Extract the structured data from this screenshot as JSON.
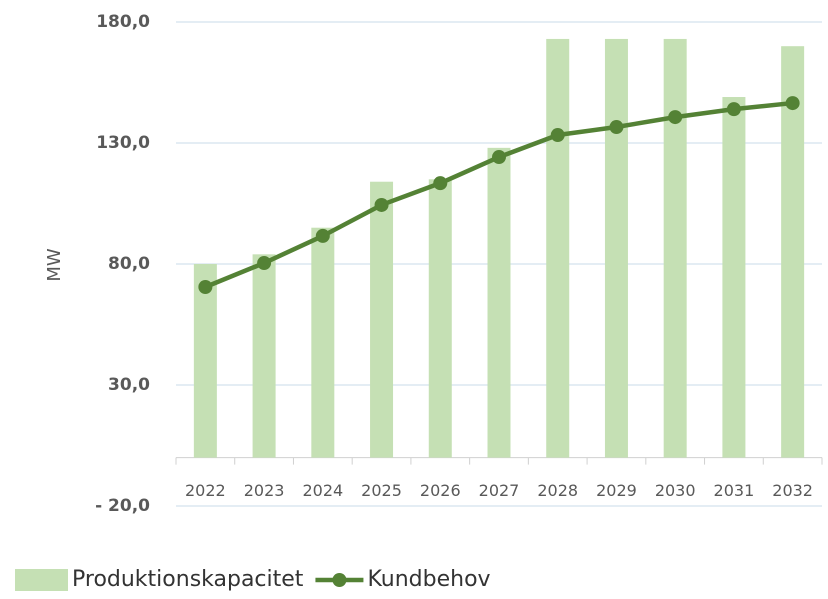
{
  "chart_data": {
    "type": "bar",
    "y_label": "MW",
    "categories": [
      "2022",
      "2023",
      "2024",
      "2025",
      "2026",
      "2027",
      "2028",
      "2029",
      "2030",
      "2031",
      "2032"
    ],
    "series": [
      {
        "name": "Produktionskapacitet",
        "type": "bar",
        "color": "#c5e0b4",
        "values": [
          80,
          84,
          95,
          114,
          115,
          128,
          173,
          173,
          173,
          149,
          170
        ]
      },
      {
        "name": "Kundbehov",
        "type": "line",
        "color": "#548235",
        "values": [
          70.5,
          80.4,
          91.6,
          104.4,
          113.4,
          124.2,
          133.3,
          136.6,
          140.7,
          144,
          146.5
        ]
      }
    ],
    "ylim": [
      -20,
      180
    ],
    "yticks": [
      {
        "value": -20,
        "label": "- 20,0"
      },
      {
        "value": 30,
        "label": "30,0"
      },
      {
        "value": 80,
        "label": "80,0"
      },
      {
        "value": 130,
        "label": "130,0"
      },
      {
        "value": 180,
        "label": "180,0"
      }
    ],
    "grid": true,
    "legend": "bottom"
  }
}
